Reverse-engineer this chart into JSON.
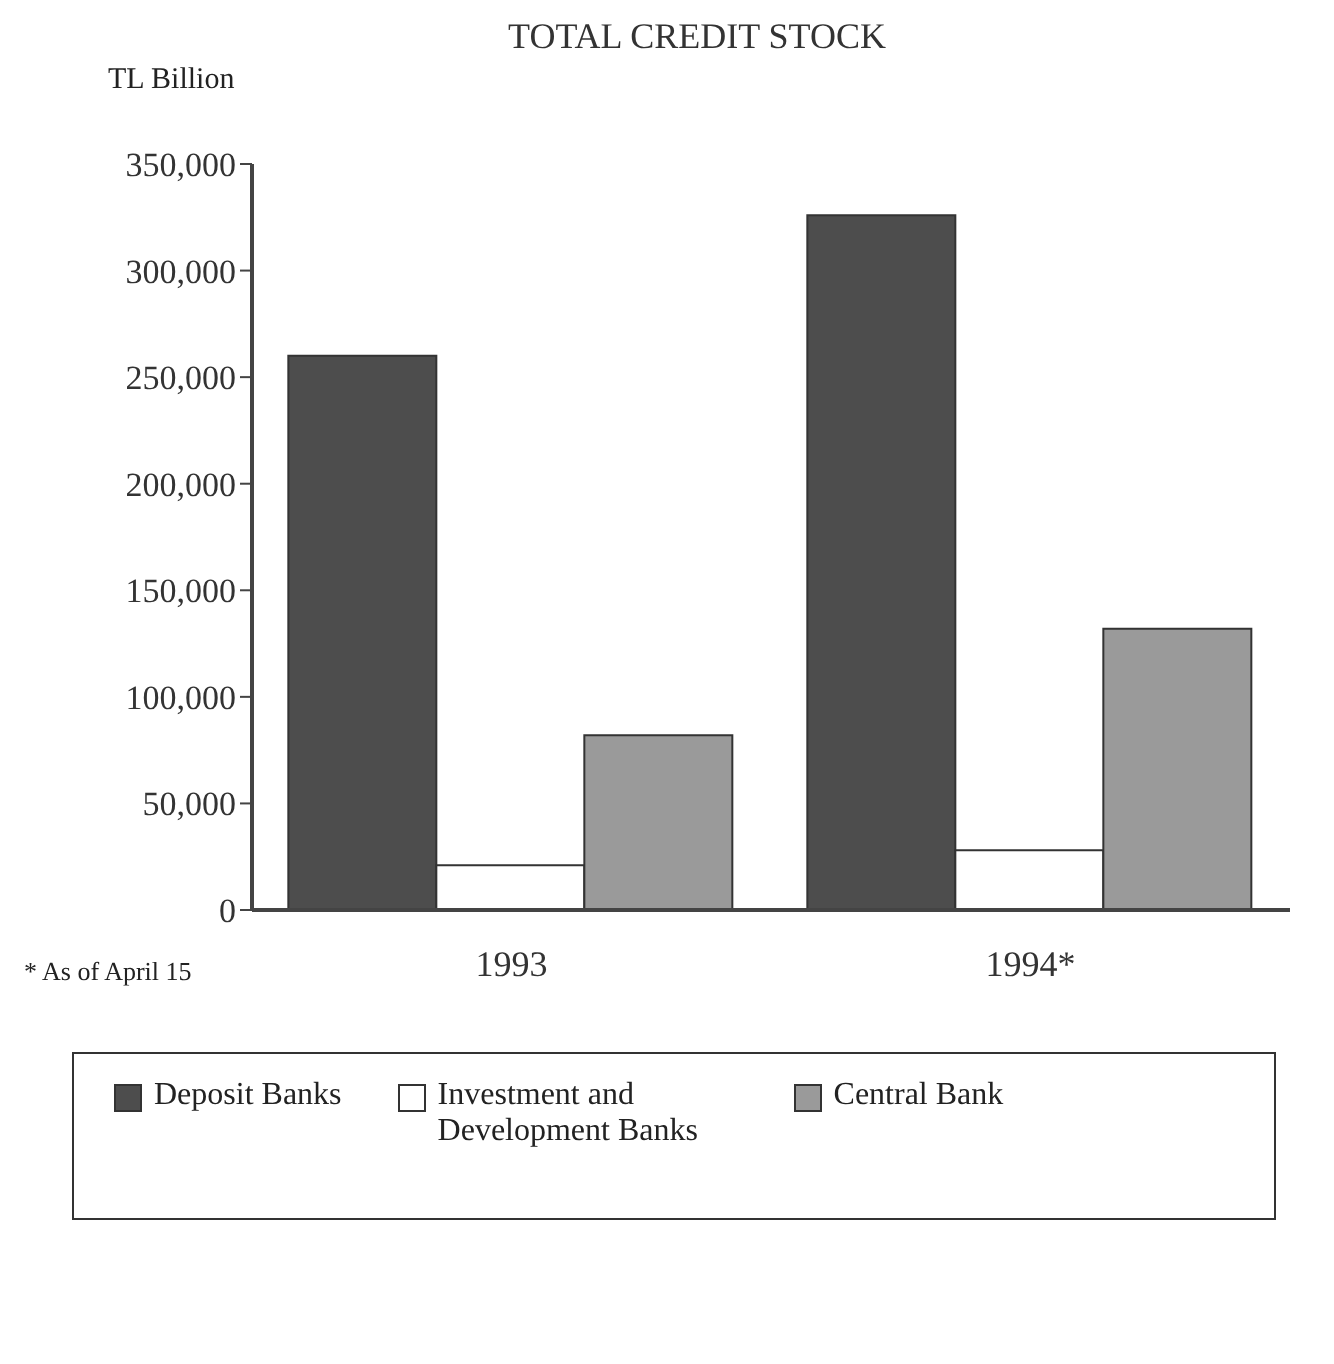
{
  "chart_data": {
    "type": "bar",
    "title": "TOTAL CREDIT STOCK",
    "ylabel": "TL Billion",
    "categories": [
      "1993",
      "1994*"
    ],
    "series": [
      {
        "name": "Deposit Banks",
        "color": "#4d4d4d",
        "values": [
          260000,
          326000
        ]
      },
      {
        "name": "Investment and Development Banks",
        "color": "#ffffff",
        "values": [
          21000,
          28000
        ]
      },
      {
        "name": "Central Bank",
        "color": "#9a9a9a",
        "values": [
          82000,
          132000
        ]
      }
    ],
    "ylim": [
      0,
      350000
    ],
    "yticks": [
      0,
      {
        "value": 50000,
        "label": "50,000"
      },
      {
        "value": 100000,
        "label": "100,000"
      },
      {
        "value": 150000,
        "label": "150,000"
      },
      {
        "value": 200000,
        "label": "200,000"
      },
      {
        "value": 250000,
        "label": "250,000"
      },
      {
        "value": 300000,
        "label": "300,000"
      },
      {
        "value": 350000,
        "label": "350,000"
      }
    ],
    "grid": false,
    "legend": "bottom",
    "annotations": [
      "* As of April 15"
    ]
  }
}
